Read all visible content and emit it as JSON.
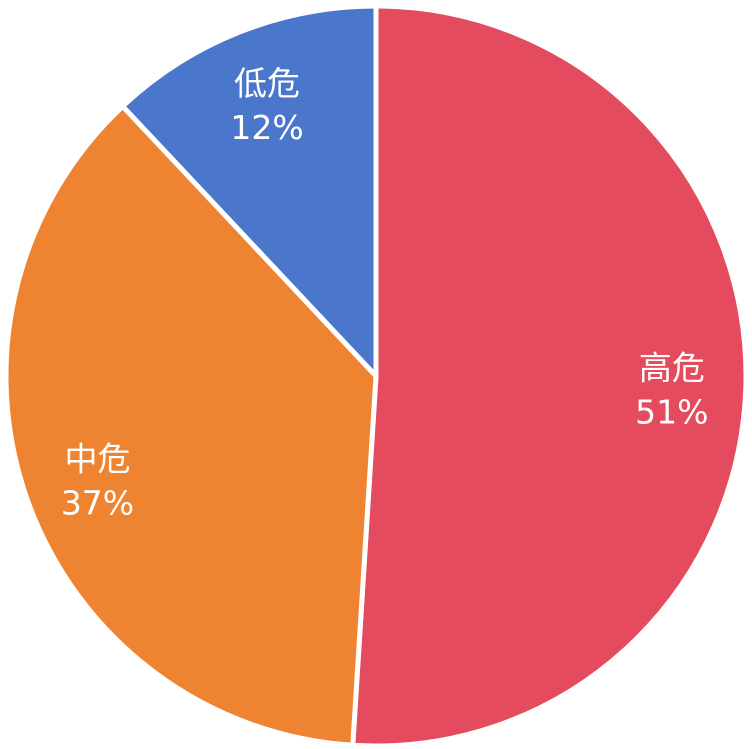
{
  "chart_data": {
    "type": "pie",
    "title": "",
    "start_angle": "top",
    "direction": "clockwise",
    "legend": "none",
    "slices": [
      {
        "label": "高危",
        "value": 51,
        "value_label": "51%",
        "color": "#E44B5E"
      },
      {
        "label": "中危",
        "value": 37,
        "value_label": "37%",
        "color": "#EE8431"
      },
      {
        "label": "低危",
        "value": 12,
        "value_label": "12%",
        "color": "#4A76CC"
      }
    ]
  }
}
